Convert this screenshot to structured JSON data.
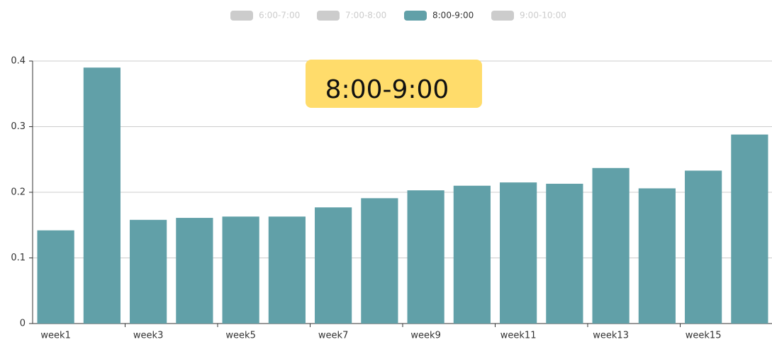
{
  "chart_data": {
    "type": "bar",
    "legend": [
      {
        "name": "6:00-7:00",
        "selected": false
      },
      {
        "name": "7:00-8:00",
        "selected": false
      },
      {
        "name": "8:00-9:00",
        "selected": true
      },
      {
        "name": "9:00-10:00",
        "selected": false
      }
    ],
    "categories": [
      "week1",
      null,
      "week3",
      null,
      "week5",
      null,
      "week7",
      null,
      "week9",
      null,
      "week11",
      null,
      "week13",
      null,
      "week15",
      null
    ],
    "series": [
      {
        "name": "8:00-9:00",
        "color": "#61a0a8",
        "values": [
          0.142,
          0.39,
          0.158,
          0.161,
          0.163,
          0.163,
          0.177,
          0.191,
          0.203,
          0.21,
          0.215,
          0.213,
          0.237,
          0.206,
          0.233,
          0.288
        ]
      }
    ],
    "ylim": [
      0,
      0.4
    ],
    "yticks": [
      0,
      0.1,
      0.2,
      0.3,
      0.4
    ],
    "grid": true
  }
}
